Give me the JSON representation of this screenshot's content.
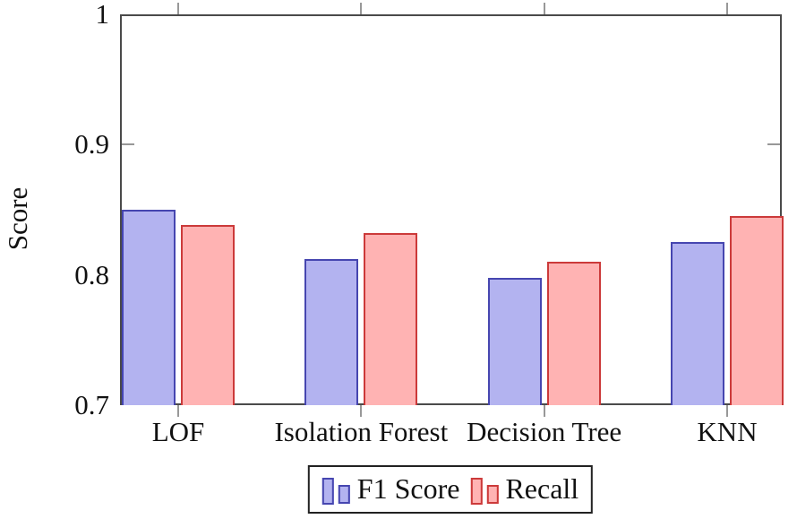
{
  "chart_data": {
    "type": "bar",
    "title": "",
    "xlabel": "",
    "ylabel": "Score",
    "categories": [
      "LOF",
      "Isolation Forest",
      "Decision Tree",
      "KNN"
    ],
    "series": [
      {
        "name": "F1 Score",
        "values": [
          0.85,
          0.812,
          0.798,
          0.825
        ],
        "fill_color": "#b3b3f0",
        "border_color": "#4646b0"
      },
      {
        "name": "Recall",
        "values": [
          0.838,
          0.832,
          0.81,
          0.845
        ],
        "fill_color": "#ffb3b3",
        "border_color": "#cc3a3a"
      }
    ],
    "ylim": [
      0.7,
      1.0
    ],
    "yticks": [
      0.7,
      0.8,
      0.9,
      1
    ],
    "ytick_labels": [
      "0.7",
      "0.8",
      "0.9",
      "1"
    ],
    "grid": "off",
    "legend_position": "below-plot",
    "axis_color": "#4a4a4a",
    "tick_color": "#989898"
  }
}
